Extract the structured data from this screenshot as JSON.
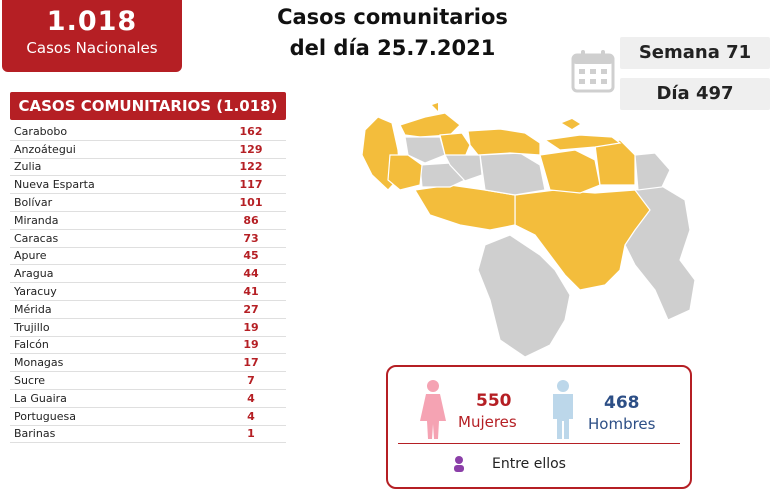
{
  "summary": {
    "total": "1.018",
    "label": "Casos Nacionales"
  },
  "title": {
    "line1": "Casos comunitarios",
    "line2": "del día 25.7.2021"
  },
  "week": "Semana 71",
  "day": "Día 497",
  "table": {
    "header": "CASOS COMUNITARIOS (1.018)",
    "rows": [
      {
        "name": "Carabobo",
        "value": "162"
      },
      {
        "name": "Anzoátegui",
        "value": "129"
      },
      {
        "name": "Zulia",
        "value": "122"
      },
      {
        "name": "Nueva Esparta",
        "value": "117"
      },
      {
        "name": "Bolívar",
        "value": "101"
      },
      {
        "name": "Miranda",
        "value": "86"
      },
      {
        "name": "Caracas",
        "value": "73"
      },
      {
        "name": "Apure",
        "value": "45"
      },
      {
        "name": "Aragua",
        "value": "44"
      },
      {
        "name": "Yaracuy",
        "value": "41"
      },
      {
        "name": "Mérida",
        "value": "27"
      },
      {
        "name": "Trujillo",
        "value": "19"
      },
      {
        "name": "Falcón",
        "value": "19"
      },
      {
        "name": "Monagas",
        "value": "17"
      },
      {
        "name": "Sucre",
        "value": "7"
      },
      {
        "name": "La Guaira",
        "value": "4"
      },
      {
        "name": "Portuguesa",
        "value": "4"
      },
      {
        "name": "Barinas",
        "value": "1"
      }
    ]
  },
  "gender": {
    "women_count": "550",
    "women_label": "Mujeres",
    "men_count": "468",
    "men_label": "Hombres",
    "footer": "Entre ellos"
  },
  "colors": {
    "accent": "#b51f24",
    "map_affected": "#f3bd3c",
    "map_other": "#cfcfcf",
    "women": "#f5a3b3",
    "men": "#bcd7ea",
    "men_text": "#2d4f86",
    "footer_icon": "#8b3fa8"
  }
}
